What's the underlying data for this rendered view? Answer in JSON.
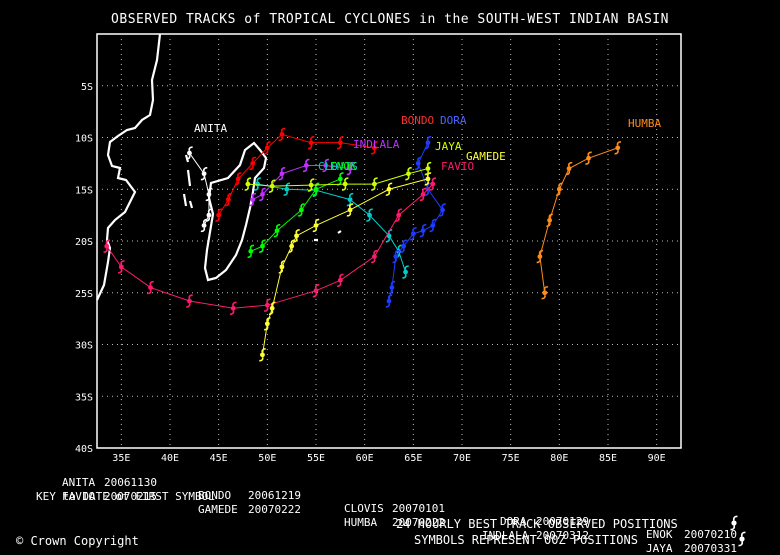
{
  "title": "OBSERVED TRACKS of TROPICAL CYCLONES in the SOUTH-WEST INDIAN BASIN",
  "axes": {
    "lat_ticks": [
      "5S",
      "10S",
      "15S",
      "20S",
      "25S",
      "30S",
      "35S",
      "40S"
    ],
    "lon_ticks": [
      "35E",
      "40E",
      "45E",
      "50E",
      "55E",
      "60E",
      "65E",
      "70E",
      "75E",
      "80E",
      "85E",
      "90E"
    ],
    "lon_range": [
      32.5,
      92.5
    ],
    "lat_range": [
      -40,
      0
    ]
  },
  "map_labels": {
    "anita": "ANITA",
    "bondo": "BONDO",
    "dora": "DORA",
    "humba": "HUMBA",
    "indlala": "INDLALA",
    "jaya": "JAYA",
    "gamede": "GAMEDE",
    "clovis": "CLOVIS",
    "enok": "ENOK",
    "favio": "FAVIO"
  },
  "key": {
    "row1": [
      {
        "name": "ANITA",
        "date": "20061130"
      },
      {
        "name": "BONDO",
        "date": "20061219"
      },
      {
        "name": "CLOVIS",
        "date": "20070101"
      },
      {
        "name": "DORA",
        "date": "20070129"
      },
      {
        "name": "ENOK",
        "date": "20070210"
      }
    ],
    "row2": [
      {
        "name": "FAVIO",
        "date": "20070215"
      },
      {
        "name": "GAMEDE",
        "date": "20070222"
      },
      {
        "name": "HUMBA",
        "date": "20070222"
      },
      {
        "name": "INDLALA",
        "date": "20070312"
      },
      {
        "name": "JAYA",
        "date": "20070331"
      }
    ],
    "note": "KEY to DATE of FIRST SYMBOL"
  },
  "footer": {
    "copyright": "© Crown Copyright",
    "line1": "24 HOURLY BEST TRACK OBSERVED POSITIONS",
    "line2": "SYMBOLS REPRESENT 00Z POSITIONS"
  },
  "colors": {
    "ANITA": "#ffffff",
    "BONDO": "#ff0000",
    "CLOVIS": "#00cccc",
    "DORA": "#1e3cff",
    "ENOK": "#00ff00",
    "FAVIO": "#ff1a6e",
    "GAMEDE": "#ffff33",
    "HUMBA": "#ff8c1a",
    "INDLALA": "#c030ff",
    "JAYA": "#ccff00"
  },
  "chart_data": {
    "type": "scatter",
    "tracks": [
      {
        "name": "ANITA",
        "points": [
          [
            42,
            -11.5
          ],
          [
            43.5,
            -13.5
          ],
          [
            44,
            -15.5
          ],
          [
            44,
            -17.5
          ],
          [
            43.5,
            -18.5
          ]
        ]
      },
      {
        "name": "BONDO",
        "points": [
          [
            61,
            -11
          ],
          [
            57.5,
            -10.5
          ],
          [
            54.5,
            -10.5
          ],
          [
            51.5,
            -9.7
          ],
          [
            50,
            -11
          ],
          [
            48.5,
            -12.5
          ],
          [
            47,
            -14
          ],
          [
            46,
            -16
          ],
          [
            45,
            -17.5
          ]
        ]
      },
      {
        "name": "CLOVIS",
        "points": [
          [
            49,
            -14.5
          ],
          [
            52,
            -15
          ],
          [
            55,
            -15.1
          ],
          [
            58.5,
            -16
          ],
          [
            60.5,
            -17.5
          ],
          [
            62.5,
            -19.5
          ],
          [
            63.5,
            -21
          ],
          [
            64.2,
            -23
          ]
        ]
      },
      {
        "name": "DORA",
        "points": [
          [
            66.5,
            -10.5
          ],
          [
            65.5,
            -12.5
          ],
          [
            66.5,
            -15
          ],
          [
            68,
            -17
          ],
          [
            67,
            -18.5
          ],
          [
            66,
            -19
          ],
          [
            65,
            -19.3
          ],
          [
            64,
            -20.5
          ],
          [
            63.2,
            -21.5
          ],
          [
            62.8,
            -24.5
          ],
          [
            62.5,
            -25.8
          ]
        ]
      },
      {
        "name": "ENOK",
        "points": [
          [
            57.5,
            -14
          ],
          [
            55,
            -15
          ],
          [
            53.5,
            -17
          ],
          [
            51,
            -19
          ],
          [
            49.5,
            -20.5
          ],
          [
            48.3,
            -21
          ]
        ]
      },
      {
        "name": "FAVIO",
        "points": [
          [
            67,
            -14.5
          ],
          [
            66,
            -15.5
          ],
          [
            63.5,
            -17.5
          ],
          [
            61,
            -21.5
          ],
          [
            57.5,
            -23.8
          ],
          [
            55,
            -24.8
          ],
          [
            50,
            -26.2
          ],
          [
            46.5,
            -26.5
          ],
          [
            42,
            -25.8
          ],
          [
            38,
            -24.5
          ],
          [
            35,
            -22.5
          ],
          [
            33.5,
            -20.5
          ]
        ]
      },
      {
        "name": "GAMEDE",
        "points": [
          [
            66.5,
            -14
          ],
          [
            62.5,
            -15
          ],
          [
            58.5,
            -17
          ],
          [
            55,
            -18.5
          ],
          [
            53,
            -19.5
          ],
          [
            52.5,
            -20.5
          ],
          [
            51.5,
            -22.5
          ],
          [
            50.5,
            -26.5
          ],
          [
            50,
            -28
          ],
          [
            49.5,
            -31
          ]
        ]
      },
      {
        "name": "HUMBA",
        "points": [
          [
            86,
            -11
          ],
          [
            83,
            -12
          ],
          [
            81,
            -13
          ],
          [
            80,
            -15
          ],
          [
            79,
            -18
          ],
          [
            78,
            -21.5
          ],
          [
            78.5,
            -25
          ]
        ]
      },
      {
        "name": "INDLALA",
        "points": [
          [
            58.5,
            -13
          ],
          [
            56,
            -12.7
          ],
          [
            54,
            -12.7
          ],
          [
            51.5,
            -13.5
          ],
          [
            49.5,
            -15.5
          ],
          [
            48.5,
            -16
          ]
        ]
      },
      {
        "name": "JAYA",
        "points": [
          [
            66.5,
            -13
          ],
          [
            64.5,
            -13.5
          ],
          [
            61,
            -14.5
          ],
          [
            58,
            -14.5
          ],
          [
            54.5,
            -14.6
          ],
          [
            50.5,
            -14.7
          ],
          [
            48,
            -14.5
          ]
        ]
      }
    ]
  }
}
